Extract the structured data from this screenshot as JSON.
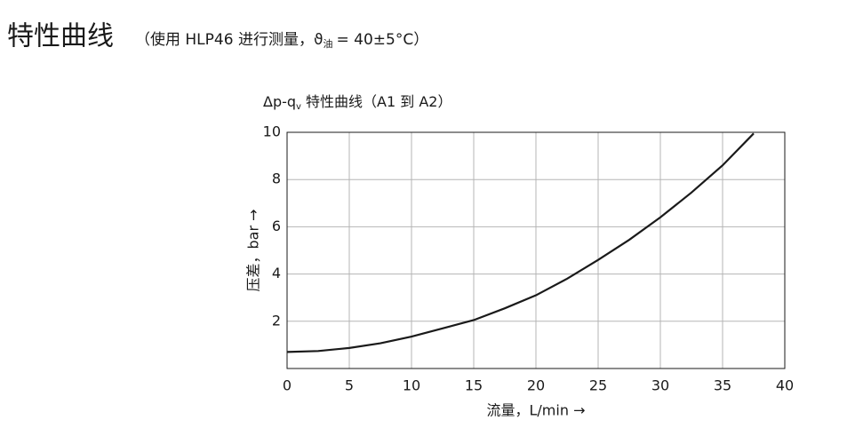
{
  "chart_data": {
    "type": "line",
    "title": "特性曲线",
    "subtitle": [
      "（使用 HLP46 进行测量，ϑ",
      "油",
      "= 40±5°C）"
    ],
    "chart_title": [
      "Δp-q",
      "v",
      " 特性曲线（A1 到 A2）"
    ],
    "x_label": "流量，L/min →",
    "y_label": "压差，bar →",
    "x": [
      0,
      2.5,
      5,
      7.5,
      10,
      12.5,
      15,
      17.5,
      20,
      22.5,
      25,
      27.5,
      30,
      32.5,
      35,
      37.5
    ],
    "series": [
      {
        "color": "#1a1a1a",
        "values": [
          0.7,
          0.74,
          0.87,
          1.07,
          1.35,
          1.7,
          2.05,
          2.55,
          3.1,
          3.8,
          4.6,
          5.45,
          6.4,
          7.45,
          8.6,
          9.95
        ]
      }
    ],
    "xlim": [
      0,
      40
    ],
    "xticks": [
      0,
      5,
      10,
      15,
      20,
      25,
      30,
      35,
      40
    ],
    "ylim": [
      0,
      10
    ],
    "yticks": [
      2,
      4,
      6,
      8,
      10
    ],
    "grid": true
  }
}
